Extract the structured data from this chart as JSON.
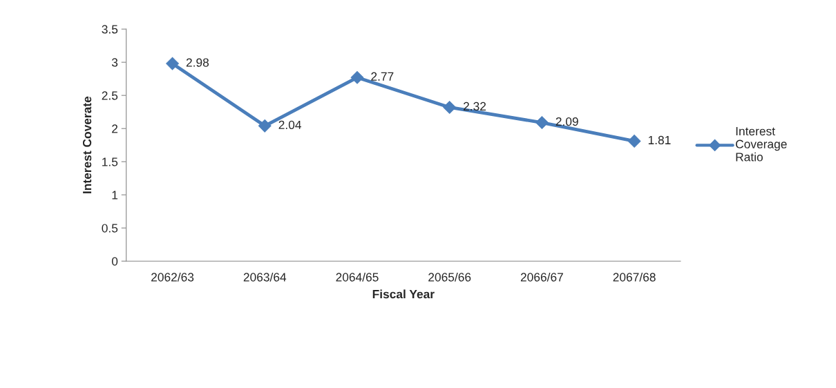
{
  "chart_data": {
    "type": "line",
    "xlabel": "Fiscal Year",
    "ylabel": "Interest Coverate",
    "categories": [
      "2062/63",
      "2063/64",
      "2064/65",
      "2065/66",
      "2066/67",
      "2067/68"
    ],
    "series": [
      {
        "name": "Interest Coverage Ratio",
        "color": "#4a7ebb",
        "values": [
          2.98,
          2.04,
          2.77,
          2.32,
          2.09,
          1.81
        ]
      }
    ],
    "ylim": [
      0,
      3.5
    ],
    "yticks": [
      0,
      0.5,
      1,
      1.5,
      2,
      2.5,
      3,
      3.5
    ],
    "marker": "diamond",
    "line_style": "solid",
    "data_labels": true,
    "legend": "right",
    "grid": false
  }
}
